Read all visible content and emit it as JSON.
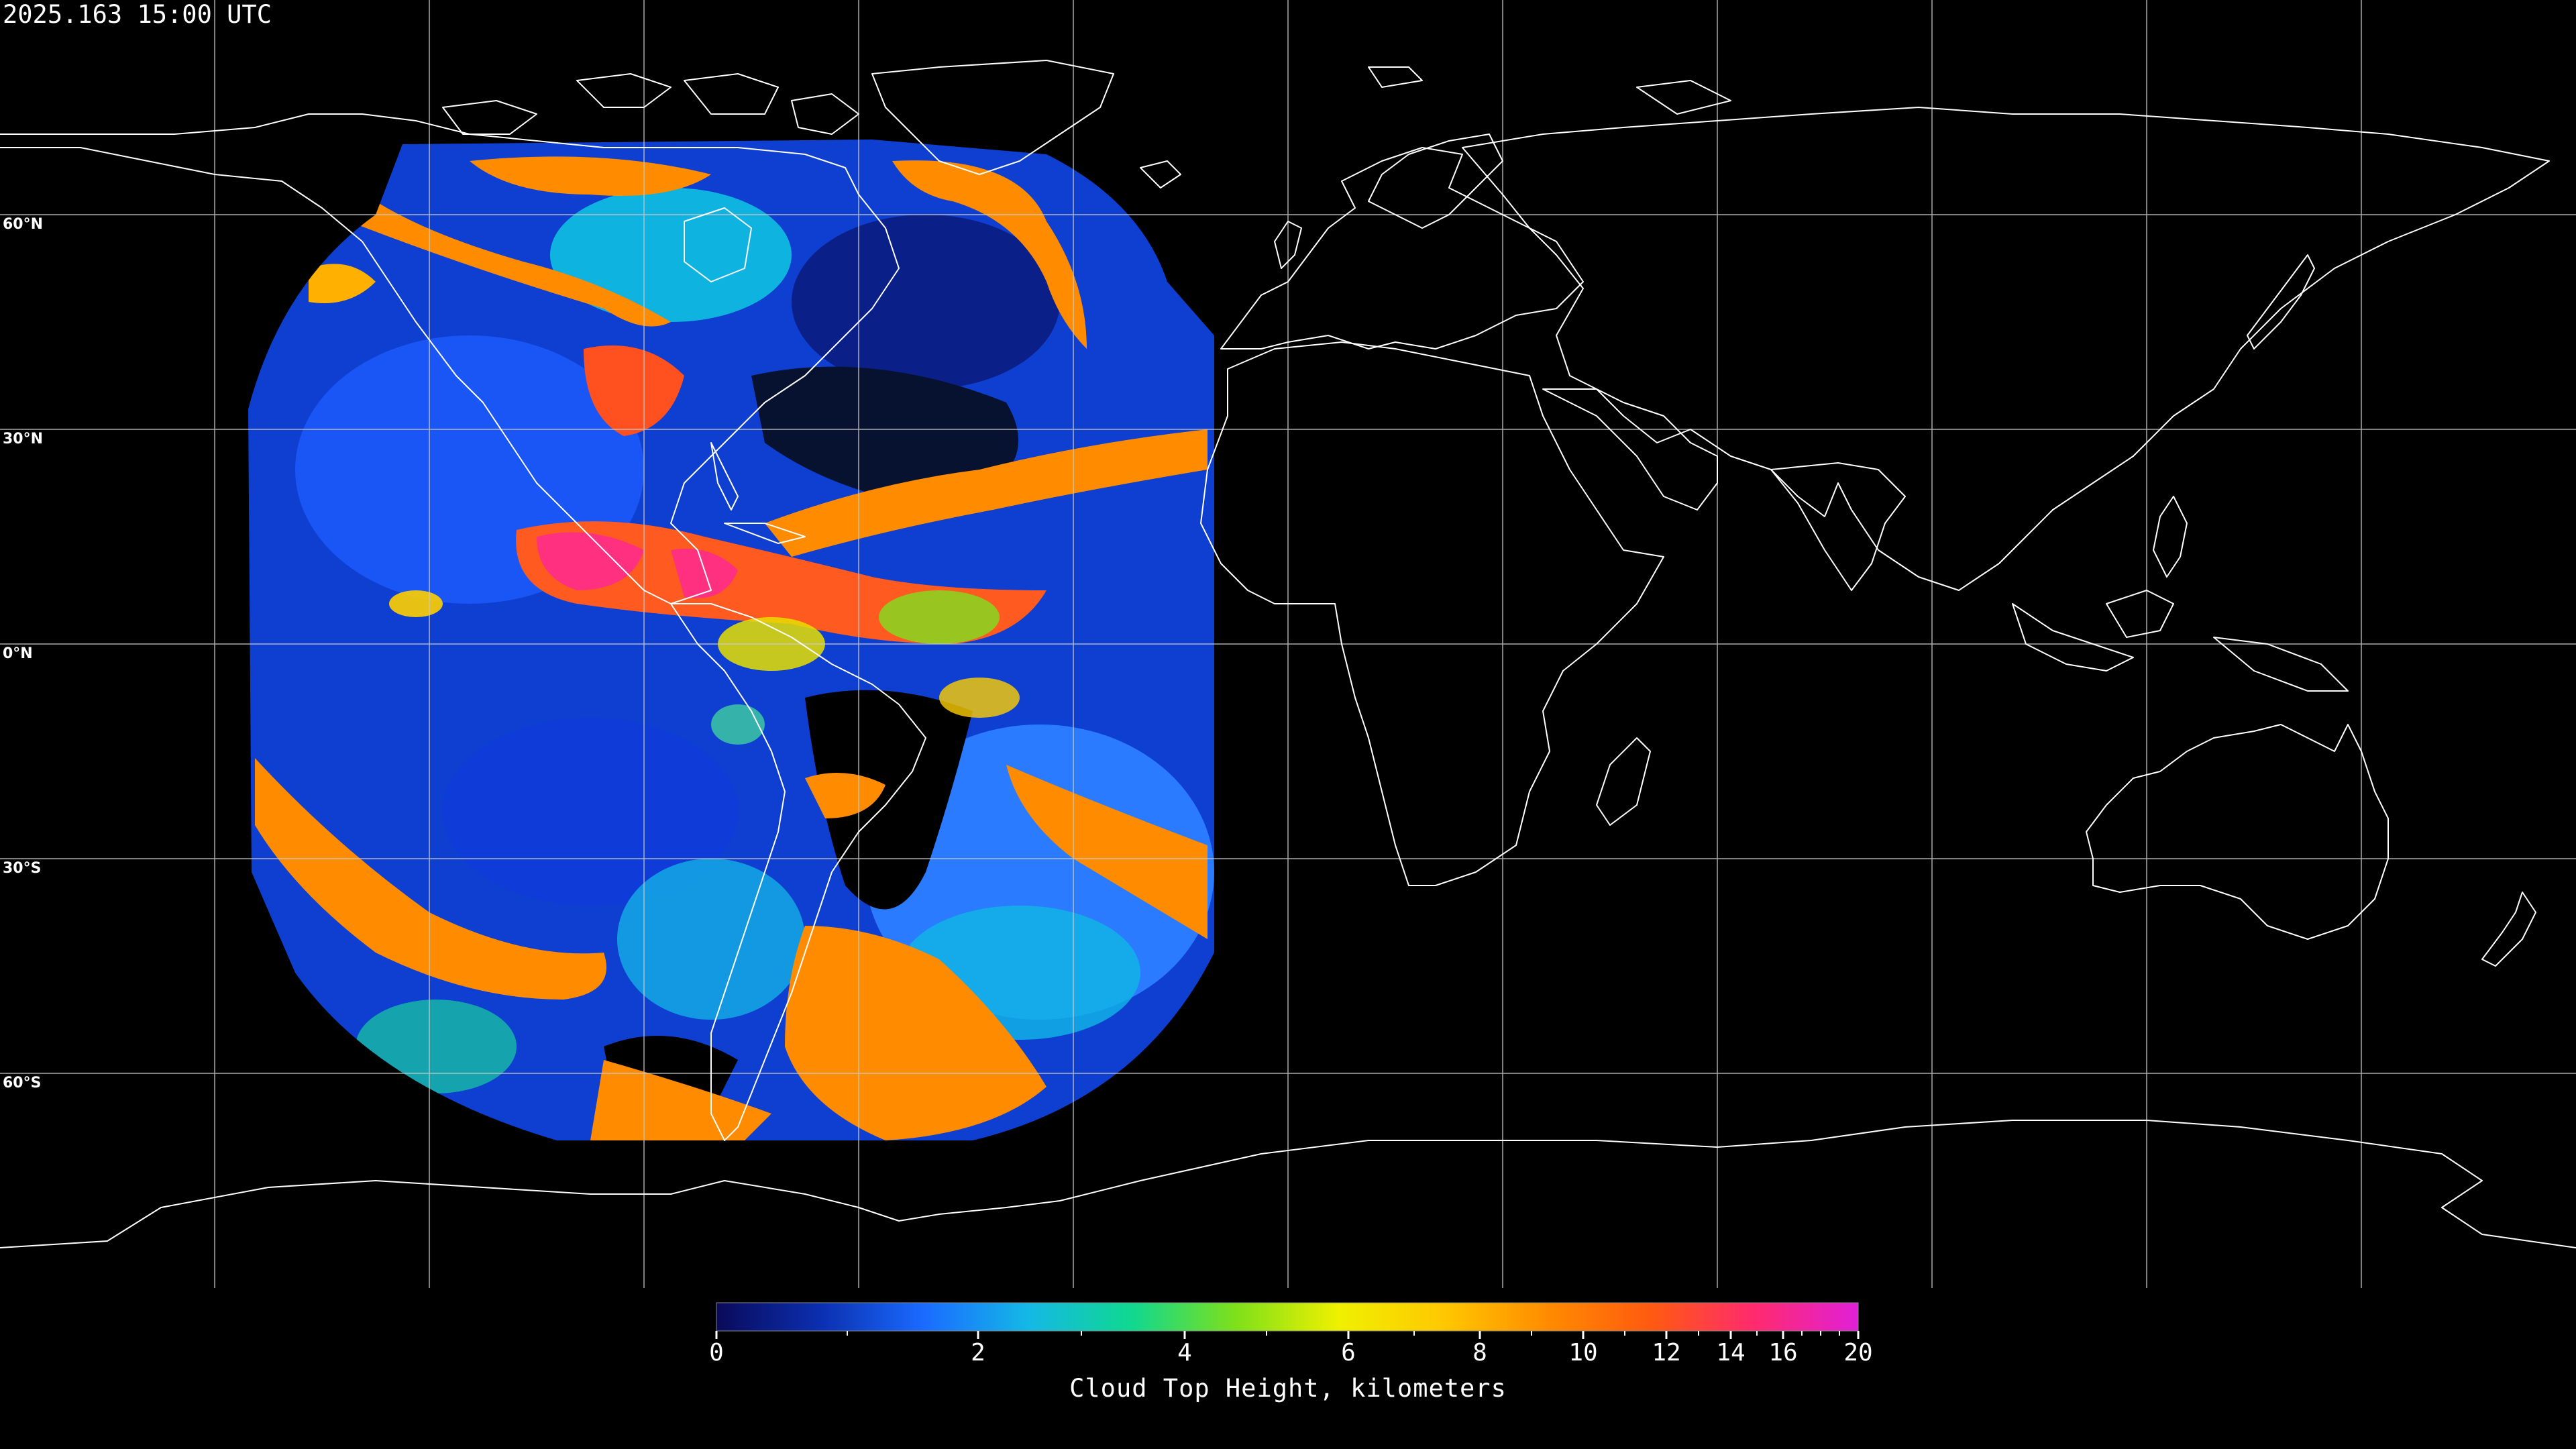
{
  "timestamp": "2025.163 15:00 UTC",
  "latitude_labels": [
    "60°N",
    "30°N",
    "0°N",
    "30°S",
    "60°S"
  ],
  "colorbar": {
    "title": "Cloud Top Height, kilometers",
    "ticks": [
      {
        "value": 0,
        "label": "0"
      },
      {
        "value": 2,
        "label": "2"
      },
      {
        "value": 4,
        "label": "4"
      },
      {
        "value": 6,
        "label": "6"
      },
      {
        "value": 8,
        "label": "8"
      },
      {
        "value": 10,
        "label": "10"
      },
      {
        "value": 12,
        "label": "12"
      },
      {
        "value": 14,
        "label": "14"
      },
      {
        "value": 16,
        "label": "16"
      },
      {
        "value": 20,
        "label": "20"
      }
    ],
    "minor_ticks": [
      1,
      3,
      5,
      7,
      9,
      11,
      13,
      15,
      17,
      18,
      19
    ],
    "colors": [
      "#0a0a5a",
      "#0b2fb0",
      "#1a6bff",
      "#14b8e6",
      "#10d890",
      "#7ee01a",
      "#f0f000",
      "#ffc800",
      "#ff8c00",
      "#ff5a10",
      "#ff2a6e",
      "#e020d8"
    ]
  },
  "colors": {
    "background": "#000000",
    "coastline": "#ffffff",
    "grid": "#c8c8c8"
  }
}
